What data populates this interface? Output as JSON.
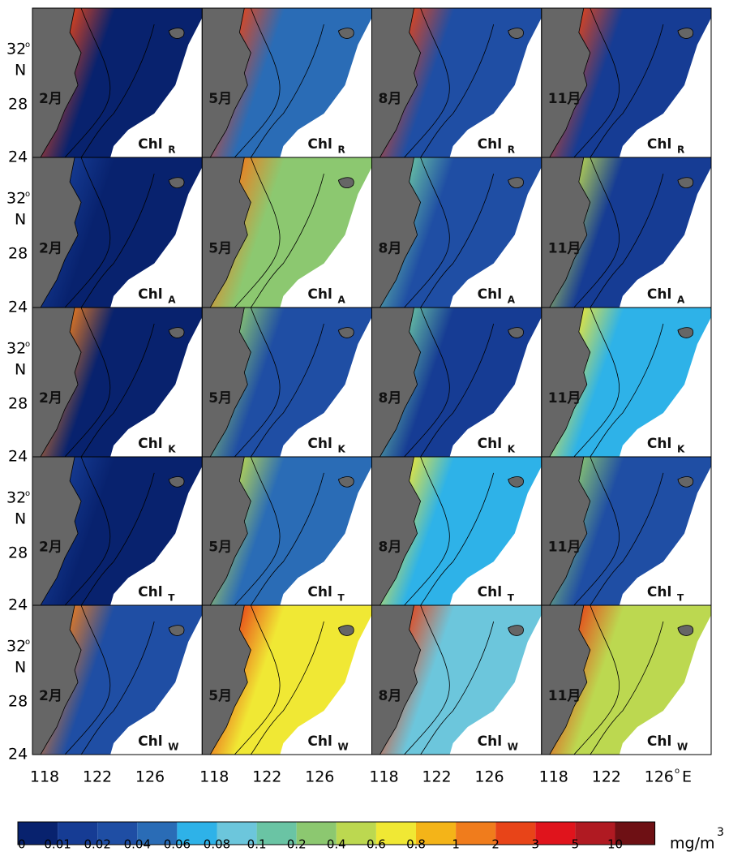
{
  "rows": [
    {
      "chl": "Chl",
      "sub": "R"
    },
    {
      "chl": "Chl",
      "sub": "A"
    },
    {
      "chl": "Chl",
      "sub": "K"
    },
    {
      "chl": "Chl",
      "sub": "T"
    },
    {
      "chl": "Chl",
      "sub": "W"
    }
  ],
  "months": [
    "2月",
    "5月",
    "8月",
    "11月"
  ],
  "y_labels": {
    "lat32": "32",
    "deg": "o",
    "n": "N",
    "lat28": "28",
    "lat24": "24"
  },
  "x_labels": {
    "lon118": "118",
    "lon122": "122",
    "lon126": "126",
    "east": "E",
    "deg": "o"
  },
  "colorbar": {
    "colors": [
      "#08226e",
      "#163c94",
      "#1f4ea4",
      "#2a6cb6",
      "#2eb2e8",
      "#6cc6dc",
      "#6ac4a4",
      "#8cc870",
      "#bcd850",
      "#f0e834",
      "#f4b418",
      "#f07c1c",
      "#e84418",
      "#e0141c",
      "#b01a22",
      "#6e1014"
    ],
    "labels": [
      "0",
      "0.01",
      "0.02",
      "0.04",
      "0.06",
      "0.08",
      "0.1",
      "0.2",
      "0.4",
      "0.6",
      "0.8",
      "1",
      "2",
      "3",
      "5",
      "10"
    ],
    "unit": "mg/m",
    "unit_sup": "3"
  }
}
